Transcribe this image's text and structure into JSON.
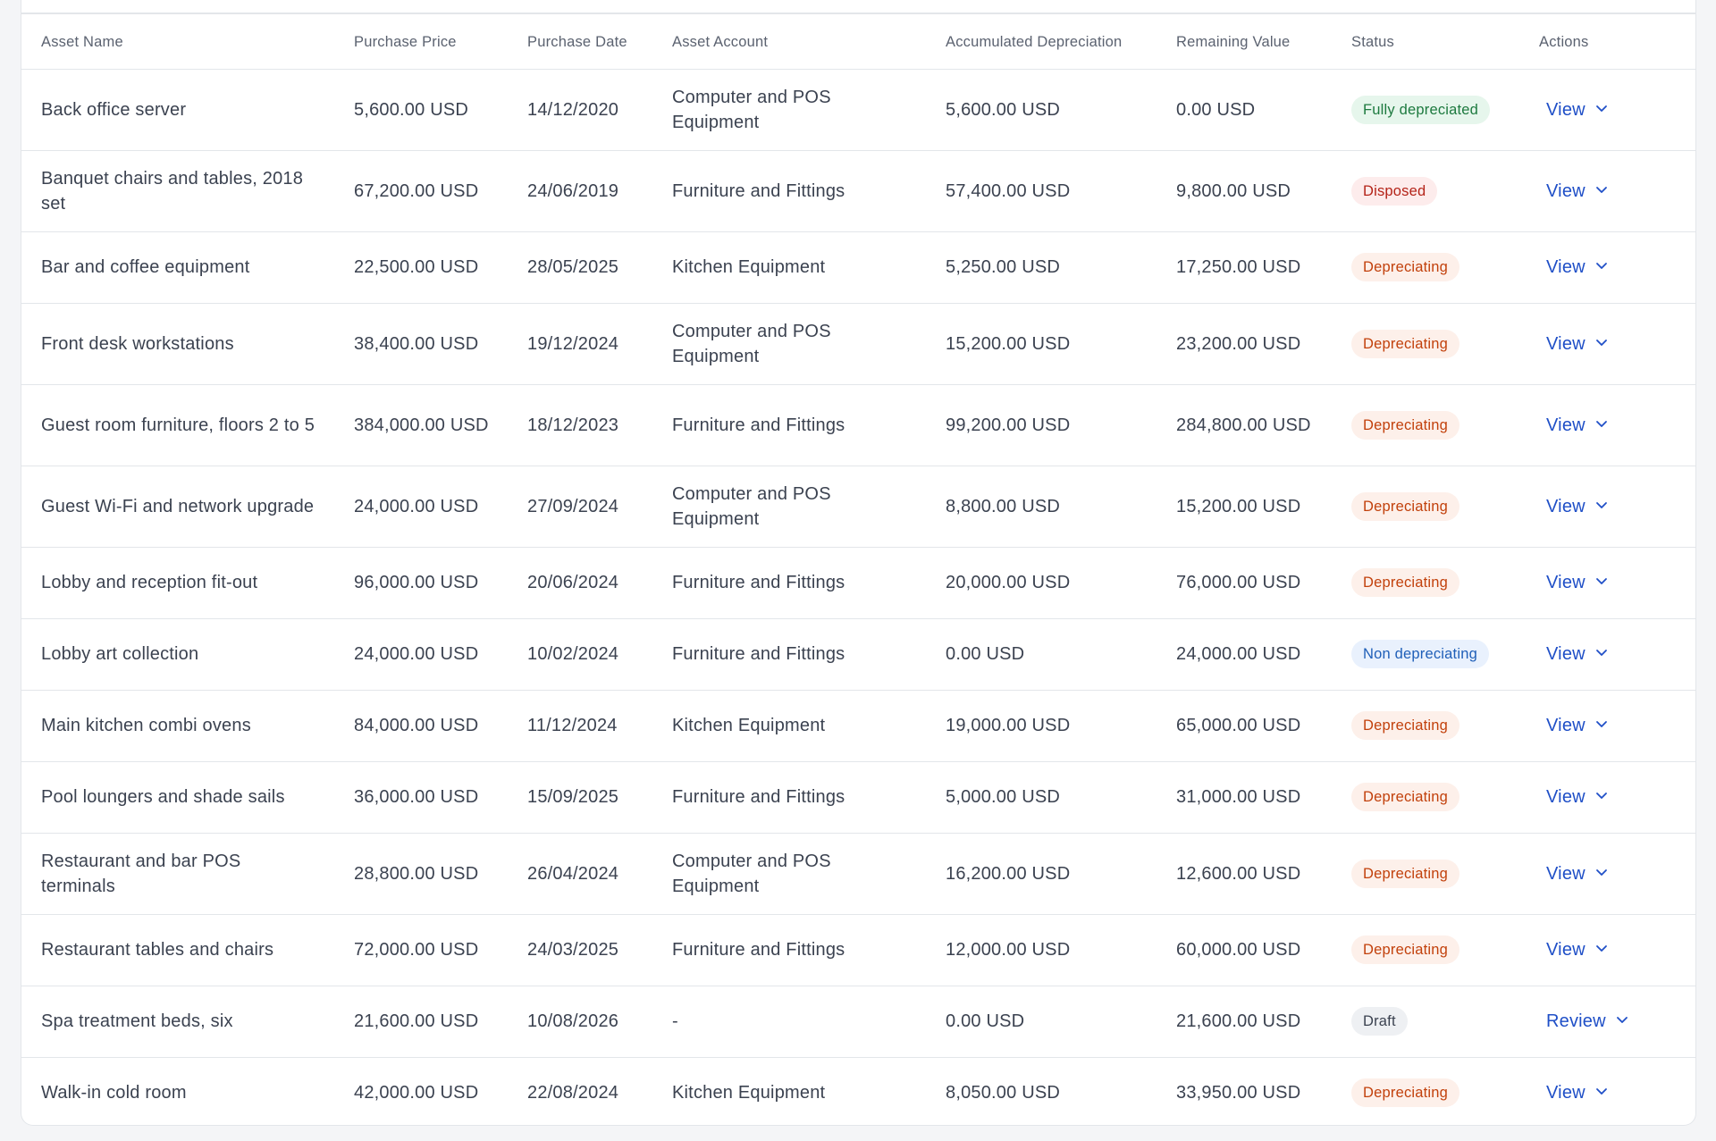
{
  "table": {
    "headers": [
      "Asset Name",
      "Purchase Price",
      "Purchase Date",
      "Asset Account",
      "Accumulated Depreciation",
      "Remaining Value",
      "Status",
      "Actions"
    ],
    "rows": [
      {
        "name": "Back office server",
        "price": "5,600.00 USD",
        "date": "14/12/2020",
        "account": "Computer and POS Equipment",
        "accumulated": "5,600.00 USD",
        "remaining": "0.00 USD",
        "status": "Fully depreciated",
        "status_kind": "full",
        "action": "View"
      },
      {
        "name": "Banquet chairs and tables, 2018 set",
        "price": "67,200.00 USD",
        "date": "24/06/2019",
        "account": "Furniture and Fittings",
        "accumulated": "57,400.00 USD",
        "remaining": "9,800.00 USD",
        "status": "Disposed",
        "status_kind": "disposed",
        "action": "View"
      },
      {
        "name": "Bar and coffee equipment",
        "price": "22,500.00 USD",
        "date": "28/05/2025",
        "account": "Kitchen Equipment",
        "accumulated": "5,250.00 USD",
        "remaining": "17,250.00 USD",
        "status": "Depreciating",
        "status_kind": "depr",
        "action": "View"
      },
      {
        "name": "Front desk workstations",
        "price": "38,400.00 USD",
        "date": "19/12/2024",
        "account": "Computer and POS Equipment",
        "accumulated": "15,200.00 USD",
        "remaining": "23,200.00 USD",
        "status": "Depreciating",
        "status_kind": "depr",
        "action": "View"
      },
      {
        "name": "Guest room furniture, floors 2 to 5",
        "price": "384,000.00 USD",
        "date": "18/12/2023",
        "account": "Furniture and Fittings",
        "accumulated": "99,200.00 USD",
        "remaining": "284,800.00 USD",
        "status": "Depreciating",
        "status_kind": "depr",
        "action": "View"
      },
      {
        "name": "Guest Wi-Fi and network upgrade",
        "price": "24,000.00 USD",
        "date": "27/09/2024",
        "account": "Computer and POS Equipment",
        "accumulated": "8,800.00 USD",
        "remaining": "15,200.00 USD",
        "status": "Depreciating",
        "status_kind": "depr",
        "action": "View"
      },
      {
        "name": "Lobby and reception fit-out",
        "price": "96,000.00 USD",
        "date": "20/06/2024",
        "account": "Furniture and Fittings",
        "accumulated": "20,000.00 USD",
        "remaining": "76,000.00 USD",
        "status": "Depreciating",
        "status_kind": "depr",
        "action": "View"
      },
      {
        "name": "Lobby art collection",
        "price": "24,000.00 USD",
        "date": "10/02/2024",
        "account": "Furniture and Fittings",
        "accumulated": "0.00 USD",
        "remaining": "24,000.00 USD",
        "status": "Non depreciating",
        "status_kind": "nondep",
        "action": "View"
      },
      {
        "name": "Main kitchen combi ovens",
        "price": "84,000.00 USD",
        "date": "11/12/2024",
        "account": "Kitchen Equipment",
        "accumulated": "19,000.00 USD",
        "remaining": "65,000.00 USD",
        "status": "Depreciating",
        "status_kind": "depr",
        "action": "View"
      },
      {
        "name": "Pool loungers and shade sails",
        "price": "36,000.00 USD",
        "date": "15/09/2025",
        "account": "Furniture and Fittings",
        "accumulated": "5,000.00 USD",
        "remaining": "31,000.00 USD",
        "status": "Depreciating",
        "status_kind": "depr",
        "action": "View"
      },
      {
        "name": "Restaurant and bar POS terminals",
        "price": "28,800.00 USD",
        "date": "26/04/2024",
        "account": "Computer and POS Equipment",
        "accumulated": "16,200.00 USD",
        "remaining": "12,600.00 USD",
        "status": "Depreciating",
        "status_kind": "depr",
        "action": "View"
      },
      {
        "name": "Restaurant tables and chairs",
        "price": "72,000.00 USD",
        "date": "24/03/2025",
        "account": "Furniture and Fittings",
        "accumulated": "12,000.00 USD",
        "remaining": "60,000.00 USD",
        "status": "Depreciating",
        "status_kind": "depr",
        "action": "View"
      },
      {
        "name": "Spa treatment beds, six",
        "price": "21,600.00 USD",
        "date": "10/08/2026",
        "account": "-",
        "accumulated": "0.00 USD",
        "remaining": "21,600.00 USD",
        "status": "Draft",
        "status_kind": "draft",
        "action": "Review"
      },
      {
        "name": "Walk-in cold room",
        "price": "42,000.00 USD",
        "date": "22/08/2024",
        "account": "Kitchen Equipment",
        "accumulated": "8,050.00 USD",
        "remaining": "33,950.00 USD",
        "status": "Depreciating",
        "status_kind": "depr",
        "action": "View"
      }
    ]
  },
  "icons": {
    "action_menu": "chevron-down-icon"
  },
  "colors": {
    "link": "#1f4fc7",
    "border": "#e3e6ea",
    "text": "#3b4250"
  }
}
